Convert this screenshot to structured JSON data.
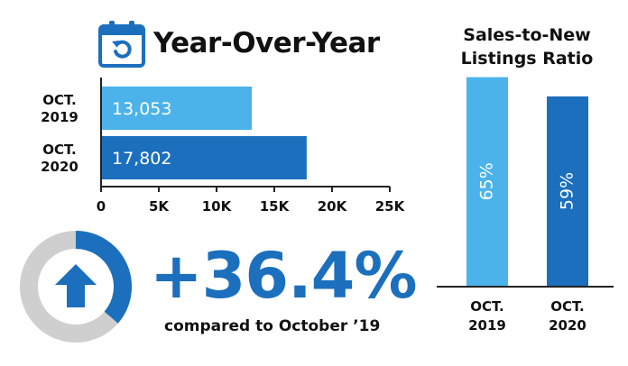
{
  "colors": {
    "light_blue": "#4bb3ea",
    "dark_blue": "#1b6fbd",
    "gray": "#cfcfcf",
    "axis": "#222222"
  },
  "icons": {
    "calendar": "calendar-refresh-icon",
    "arrow": "up-arrow-icon"
  },
  "header": {
    "title": "Year-Over-Year"
  },
  "chart_data": [
    {
      "type": "bar",
      "orientation": "horizontal",
      "title": "",
      "categories": [
        [
          "OCT.",
          "2019"
        ],
        [
          "OCT.",
          "2020"
        ]
      ],
      "values": [
        13053,
        17802
      ],
      "value_labels": [
        "13,053",
        "17,802"
      ],
      "bar_colors": [
        "#4bb3ea",
        "#1b6fbd"
      ],
      "xlim": [
        0,
        25000
      ],
      "xticks": [
        0,
        5000,
        10000,
        15000,
        20000,
        25000
      ],
      "xtick_labels": [
        "0",
        "5K",
        "10K",
        "15K",
        "20K",
        "25K"
      ],
      "grid": false
    },
    {
      "type": "bar",
      "orientation": "vertical",
      "title": "Sales-to-New Listings Ratio",
      "title_lines": [
        "Sales-to-New",
        "Listings Ratio"
      ],
      "categories": [
        [
          "OCT.",
          "2019"
        ],
        [
          "OCT.",
          "2020"
        ]
      ],
      "values": [
        65,
        59
      ],
      "value_labels": [
        "65%",
        "59%"
      ],
      "bar_colors": [
        "#4bb3ea",
        "#1b6fbd"
      ],
      "ylim": [
        0,
        75
      ],
      "grid": false
    }
  ],
  "summary": {
    "pct_change": "+36.4%",
    "pct_change_value": 36.4,
    "caption": "compared to October ’19"
  }
}
